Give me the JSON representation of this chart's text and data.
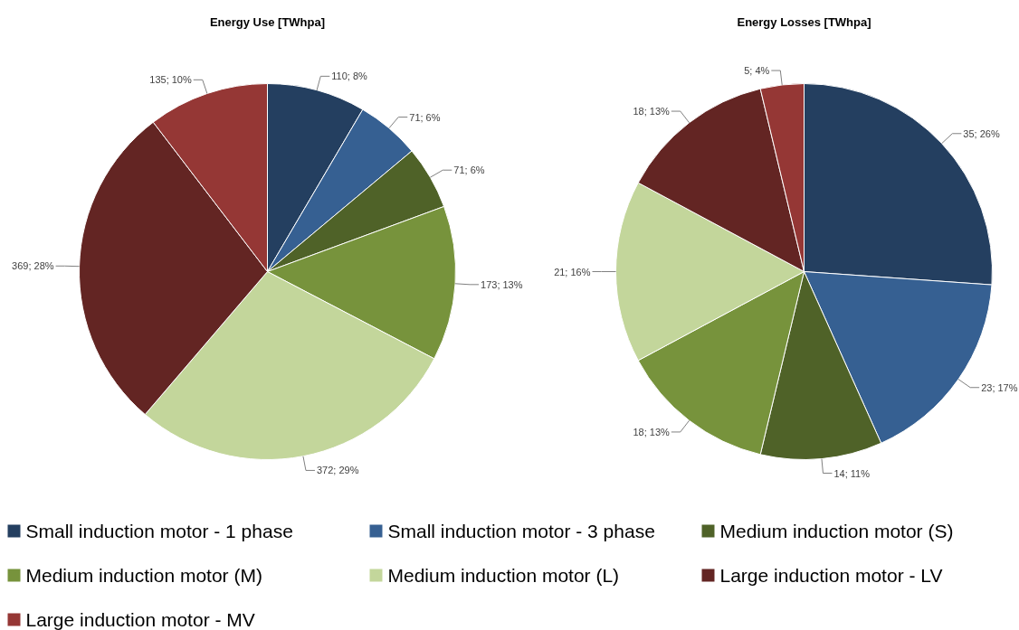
{
  "chart_data": {
    "type": "pie",
    "categories": [
      "Small induction motor - 1 phase",
      "Small induction motor - 3 phase",
      "Medium induction motor (S)",
      "Medium induction motor (M)",
      "Medium induction motor (L)",
      "Large induction motor - LV",
      "Large induction motor - MV"
    ],
    "colors": [
      "#243f60",
      "#366092",
      "#4f6228",
      "#77933c",
      "#c3d69b",
      "#632523",
      "#953735"
    ],
    "series": [
      {
        "name": "Energy Use [TWhpa]",
        "values": [
          110,
          71,
          71,
          173,
          372,
          369,
          135
        ],
        "value_labels": [
          "110; 8%",
          "71; 6%",
          "71; 6%",
          "173; 13%",
          "372; 29%",
          "369; 28%",
          "135; 10%"
        ]
      },
      {
        "name": "Energy Losses [TWhpa]",
        "values": [
          35,
          23,
          14,
          18,
          21,
          18,
          5
        ],
        "value_labels": [
          "35; 26%",
          "23; 17%",
          "14; 11%",
          "18; 13%",
          "21; 16%",
          "18; 13%",
          "5; 4%"
        ]
      }
    ],
    "legend": "bottom"
  }
}
